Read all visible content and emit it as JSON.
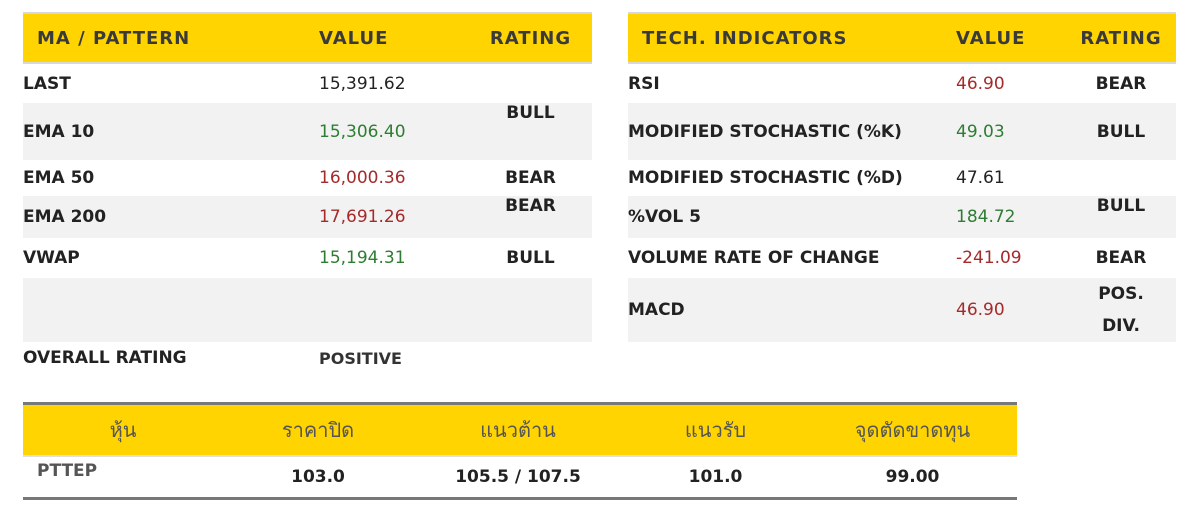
{
  "ma_table": {
    "headers": [
      "MA / PATTERN",
      "VALUE",
      "RATING"
    ],
    "rows": [
      {
        "label": "LAST",
        "value": "15,391.62",
        "rating": ""
      },
      {
        "label": "EMA 10",
        "value": "15,306.40",
        "rating": "BULL"
      },
      {
        "label": "EMA 50",
        "value": "16,000.36",
        "rating": "BEAR"
      },
      {
        "label": "EMA 200",
        "value": "17,691.26",
        "rating": "BEAR"
      },
      {
        "label": "VWAP",
        "value": "15,194.31",
        "rating": "BULL"
      },
      {
        "label": "",
        "value": "",
        "rating": ""
      },
      {
        "label": "OVERALL RATING",
        "value": "POSITIVE",
        "rating": ""
      }
    ]
  },
  "tech_table": {
    "headers": [
      "TECH. INDICATORS",
      "VALUE",
      "RATING"
    ],
    "rows": [
      {
        "label": "RSI",
        "value": "46.90",
        "rating": "BEAR"
      },
      {
        "label": "MODIFIED STOCHASTIC (%K)",
        "value": "49.03",
        "rating": "BULL"
      },
      {
        "label": "MODIFIED STOCHASTIC (%D)",
        "value": "47.61",
        "rating": ""
      },
      {
        "label": "%VOL 5",
        "value": "184.72",
        "rating": "BULL"
      },
      {
        "label": "VOLUME RATE OF CHANGE",
        "value": "-241.09",
        "rating": "BEAR"
      },
      {
        "label": "MACD",
        "value": "46.90",
        "rating_line1": "POS.",
        "rating_line2": "DIV."
      }
    ]
  },
  "stock_table": {
    "headers": [
      "หุ้น",
      "ราคาปิด",
      "แนวต้าน",
      "แนวรับ",
      "จุดตัดขาดทุน"
    ],
    "row": {
      "symbol": "PTTEP",
      "close": "103.0",
      "resistance": "105.5 / 107.5",
      "support": "101.0",
      "stop_loss": "99.00"
    }
  },
  "colors": {
    "header_yellow": "#ffd400",
    "bull_green": "#2e7d32",
    "bear_red": "#a52a2a",
    "row_gray": "#f2f2f2"
  }
}
